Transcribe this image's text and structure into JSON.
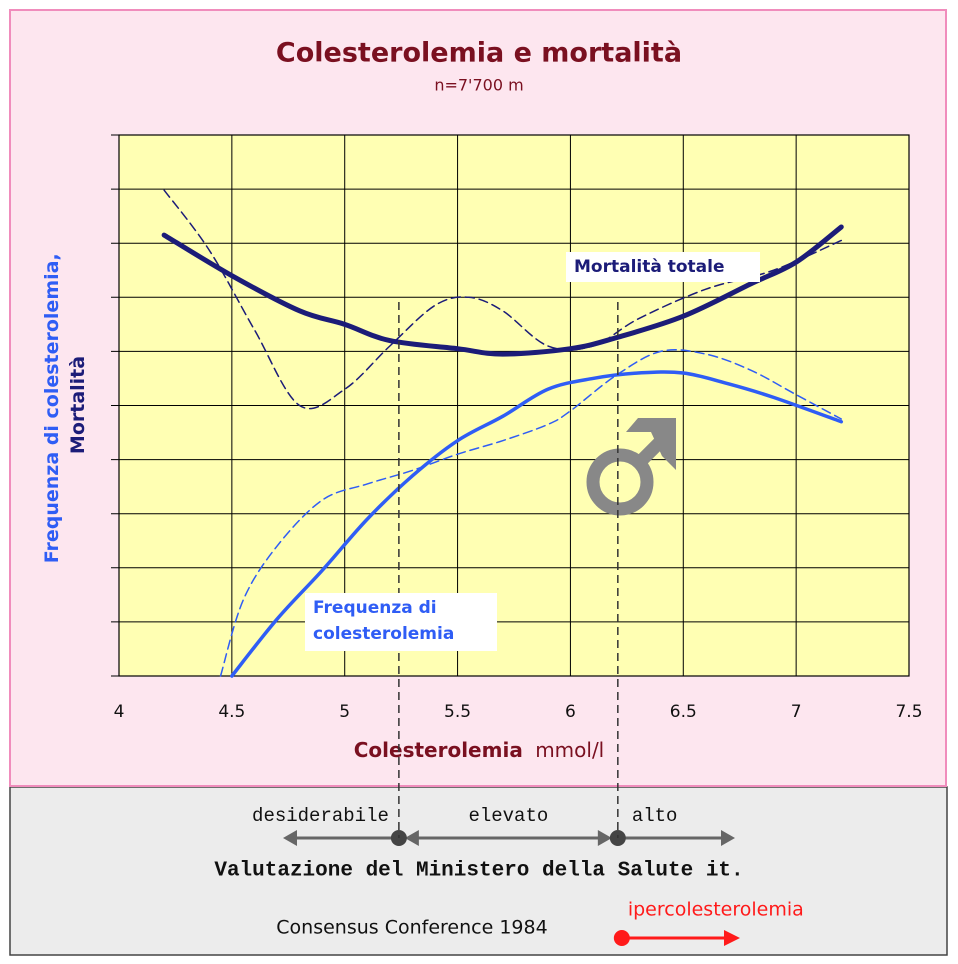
{
  "chart_data": {
    "type": "line",
    "title": "Colesterolemia e mortalità",
    "subtitle": "n=7'700 m",
    "xlabel": "Colesterolemia",
    "xlabel_unit": "mmol/l",
    "ylabel": [
      {
        "text": "Frequenza di colesterolemia,",
        "color": "#2f5df5"
      },
      {
        "text": "Mortalità",
        "color": "#1c1c78"
      }
    ],
    "xlim": [
      4,
      7.5
    ],
    "xticks": [
      4,
      4.5,
      5,
      5.5,
      6,
      6.5,
      7,
      7.5
    ],
    "ylim": [
      0,
      10
    ],
    "grid": true,
    "series": [
      {
        "color": "#1c1c78",
        "style": "solid",
        "width": 5,
        "x": [
          4.2,
          4.5,
          4.8,
          5.0,
          5.2,
          5.5,
          5.7,
          6.0,
          6.2,
          6.5,
          6.8,
          7.0,
          7.2
        ],
        "values": [
          8.15,
          7.4,
          6.75,
          6.5,
          6.2,
          6.05,
          5.95,
          6.05,
          6.25,
          6.65,
          7.25,
          7.65,
          8.3
        ]
      },
      {
        "color": "#1c1c78",
        "style": "dashed",
        "width": 1.5,
        "x": [
          4.2,
          4.4,
          4.6,
          4.8,
          5.0,
          5.2,
          5.4,
          5.55,
          5.7,
          5.9,
          6.1,
          6.3,
          6.6,
          6.9,
          7.2
        ],
        "values": [
          8.98,
          7.87,
          6.4,
          5.0,
          5.3,
          6.1,
          6.85,
          7.0,
          6.75,
          6.1,
          6.1,
          6.6,
          7.15,
          7.5,
          8.05
        ]
      },
      {
        "color": "#2f5df5",
        "style": "solid",
        "width": 3.5,
        "x": [
          4.5,
          4.7,
          4.9,
          5.1,
          5.3,
          5.5,
          5.7,
          5.9,
          6.1,
          6.3,
          6.5,
          6.7,
          6.9,
          7.2
        ],
        "values": [
          0,
          1.05,
          1.95,
          2.9,
          3.7,
          4.35,
          4.8,
          5.3,
          5.5,
          5.6,
          5.6,
          5.4,
          5.15,
          4.7
        ]
      },
      {
        "color": "#2f5df5",
        "style": "dashed",
        "width": 1.5,
        "x": [
          4.45,
          4.55,
          4.7,
          4.9,
          5.1,
          5.3,
          5.5,
          5.7,
          5.9,
          6.0,
          6.2,
          6.4,
          6.6,
          6.8,
          7.0,
          7.2
        ],
        "values": [
          0,
          1.4,
          2.4,
          3.25,
          3.55,
          3.8,
          4.1,
          4.35,
          4.65,
          4.9,
          5.55,
          6.0,
          5.95,
          5.65,
          5.2,
          4.75
        ]
      }
    ],
    "annotations": [
      {
        "lines": [
          "Mortalità totale"
        ],
        "color": "#1c1c78"
      },
      {
        "lines": [
          "Frequenza di",
          "colesterolemia"
        ],
        "color": "#2f5df5"
      }
    ],
    "thresholds": [
      5.24,
      6.21
    ],
    "ranges": [
      "desiderabile",
      "elevato",
      "alto"
    ],
    "assessment": "Valutazione del Ministero della Salute it.",
    "consensus": "Consensus Conference 1984",
    "consensus_label": "ipercolesterolemia"
  }
}
